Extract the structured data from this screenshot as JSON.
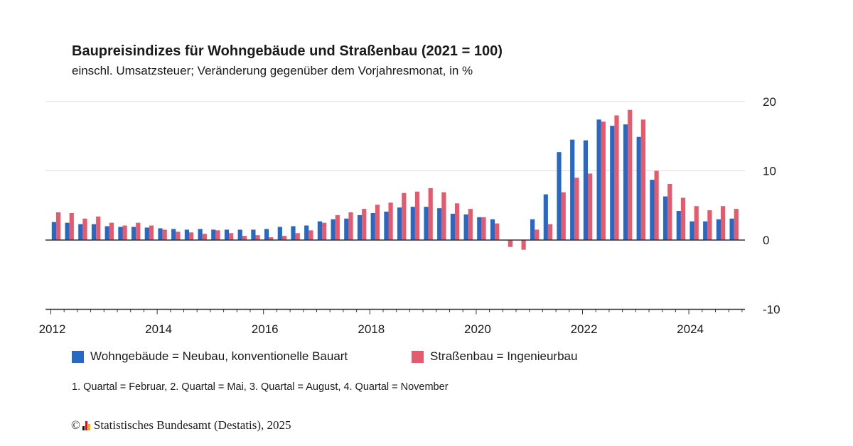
{
  "title": "Baupreisindizes für Wohngebäude und Straßenbau (2021 = 100)",
  "subtitle": "einschl. Umsatzsteuer; Veränderung gegenüber dem Vorjahresmonat, in %",
  "note": "1. Quartal = Februar, 2. Quartal = Mai, 3. Quartal = August, 4. Quartal = November",
  "source": {
    "copyright_symbol": "©",
    "text": "Statistisches Bundesamt (Destatis), 2025",
    "logo_colors": [
      "#1a1a1a",
      "#e30613",
      "#f2b300"
    ]
  },
  "chart_data": {
    "type": "bar",
    "title": "Baupreisindizes für Wohngebäude und Straßenbau (2021 = 100)",
    "subtitle": "einschl. Umsatzsteuer; Veränderung gegenüber dem Vorjahresmonat, in %",
    "x_start": "2012 Q1",
    "x_end": "2024 Q4",
    "x_ticks": [
      "2012",
      "2014",
      "2016",
      "2018",
      "2020",
      "2022",
      "2024"
    ],
    "y_ticks": [
      "20",
      "10",
      "0",
      "-10"
    ],
    "ylim": [
      -10,
      20
    ],
    "grid": true,
    "legend_position": "bottom",
    "series": [
      {
        "name": "Wohngebäude = Neubau, konventionelle Bauart",
        "color": "#2668c4",
        "values": [
          2.6,
          2.5,
          2.3,
          2.3,
          2.0,
          1.9,
          1.9,
          1.8,
          1.7,
          1.6,
          1.5,
          1.6,
          1.5,
          1.5,
          1.5,
          1.5,
          1.6,
          1.9,
          2.0,
          2.1,
          2.7,
          3.0,
          3.1,
          3.6,
          3.9,
          4.1,
          4.7,
          4.8,
          4.8,
          4.6,
          3.8,
          3.7,
          3.3,
          3.0,
          0.0,
          0.0,
          3.0,
          6.6,
          12.7,
          14.5,
          14.4,
          17.4,
          16.5,
          16.7,
          14.9,
          8.7,
          6.3,
          4.2,
          2.7,
          2.7,
          3.0,
          3.1
        ],
        "legend_label": "Wohngebäude = Neubau, konventionelle Bauart"
      },
      {
        "name": "Straßenbau = Ingenieurbau",
        "color": "#e55a6d",
        "values": [
          4.0,
          3.9,
          3.1,
          3.4,
          2.5,
          2.1,
          2.5,
          2.1,
          1.5,
          1.2,
          1.1,
          0.9,
          1.4,
          1.0,
          0.6,
          0.7,
          0.4,
          0.6,
          1.0,
          1.4,
          2.5,
          3.6,
          4.0,
          4.5,
          5.1,
          5.4,
          6.8,
          7.0,
          7.5,
          6.9,
          5.3,
          4.5,
          3.3,
          2.4,
          -1.0,
          -1.4,
          1.5,
          2.3,
          6.9,
          9.0,
          9.6,
          17.1,
          18.0,
          18.8,
          17.4,
          10.0,
          8.1,
          6.1,
          4.9,
          4.3,
          4.9,
          4.5
        ],
        "legend_label": "Straßenbau = Ingenieurbau"
      }
    ]
  }
}
